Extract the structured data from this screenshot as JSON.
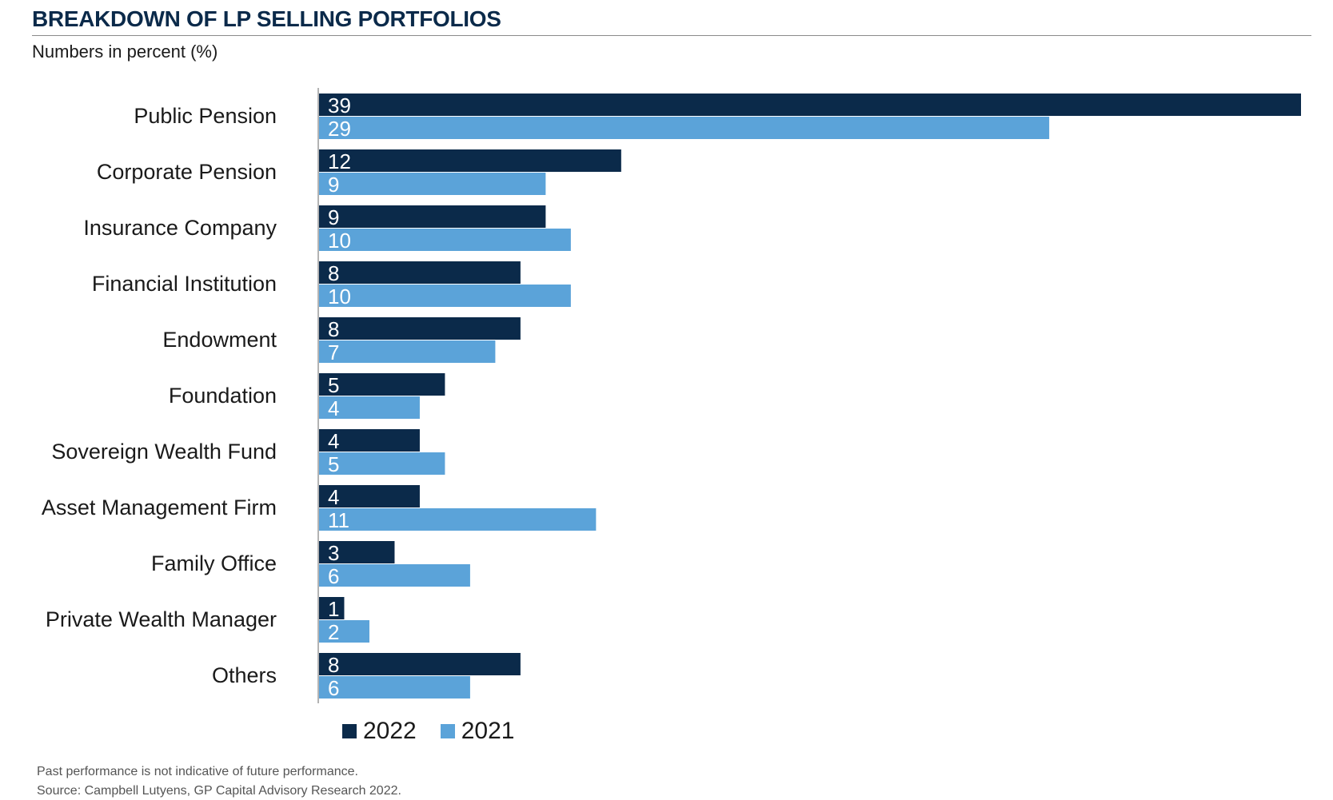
{
  "title": "BREAKDOWN OF LP SELLING PORTFOLIOS",
  "subtitle": "Numbers in percent (%)",
  "colors": {
    "series_2022": "#0b2a4a",
    "series_2021": "#5ba3d9"
  },
  "chart_data": {
    "type": "bar",
    "orientation": "horizontal",
    "categories": [
      "Public Pension",
      "Corporate Pension",
      "Insurance Company",
      "Financial Institution",
      "Endowment",
      "Foundation",
      "Sovereign Wealth Fund",
      "Asset Management Firm",
      "Family Office",
      "Private Wealth Manager",
      "Others"
    ],
    "series": [
      {
        "name": "2022",
        "values": [
          39,
          12,
          9,
          8,
          8,
          5,
          4,
          4,
          3,
          1,
          8
        ]
      },
      {
        "name": "2021",
        "values": [
          29,
          9,
          10,
          10,
          7,
          4,
          5,
          11,
          6,
          2,
          6
        ]
      }
    ],
    "xlim": [
      0,
      39
    ],
    "legend_position": "bottom-left",
    "grid": false
  },
  "footnotes": {
    "disclaimer": "Past performance is not indicative of future performance.",
    "source": "Source: Campbell Lutyens, GP Capital Advisory Research 2022."
  }
}
